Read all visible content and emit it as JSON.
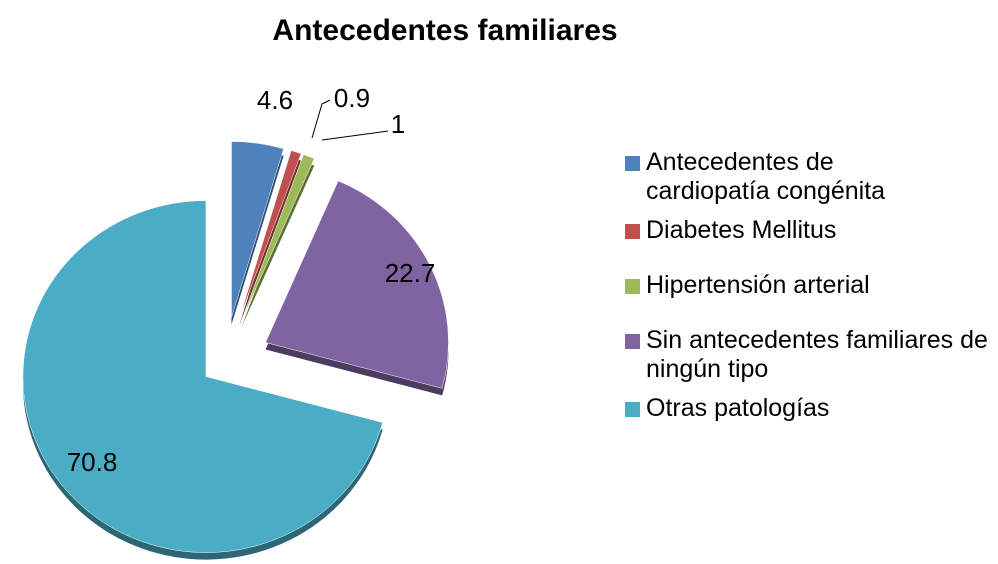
{
  "chart_data": {
    "type": "pie",
    "title": "Antecedentes familiares",
    "categories": [
      "Antecedentes de cardiopatía congénita",
      "Diabetes Mellitus",
      "Hipertensión arterial",
      "Sin antecedentes familiares de ningún tipo",
      "Otras patologías"
    ],
    "values": [
      4.6,
      0.9,
      1,
      22.7,
      70.8
    ],
    "colors": [
      "#4f81bd",
      "#c0504d",
      "#9bbb59",
      "#8064a2",
      "#4bacc6"
    ],
    "legend": "right"
  }
}
